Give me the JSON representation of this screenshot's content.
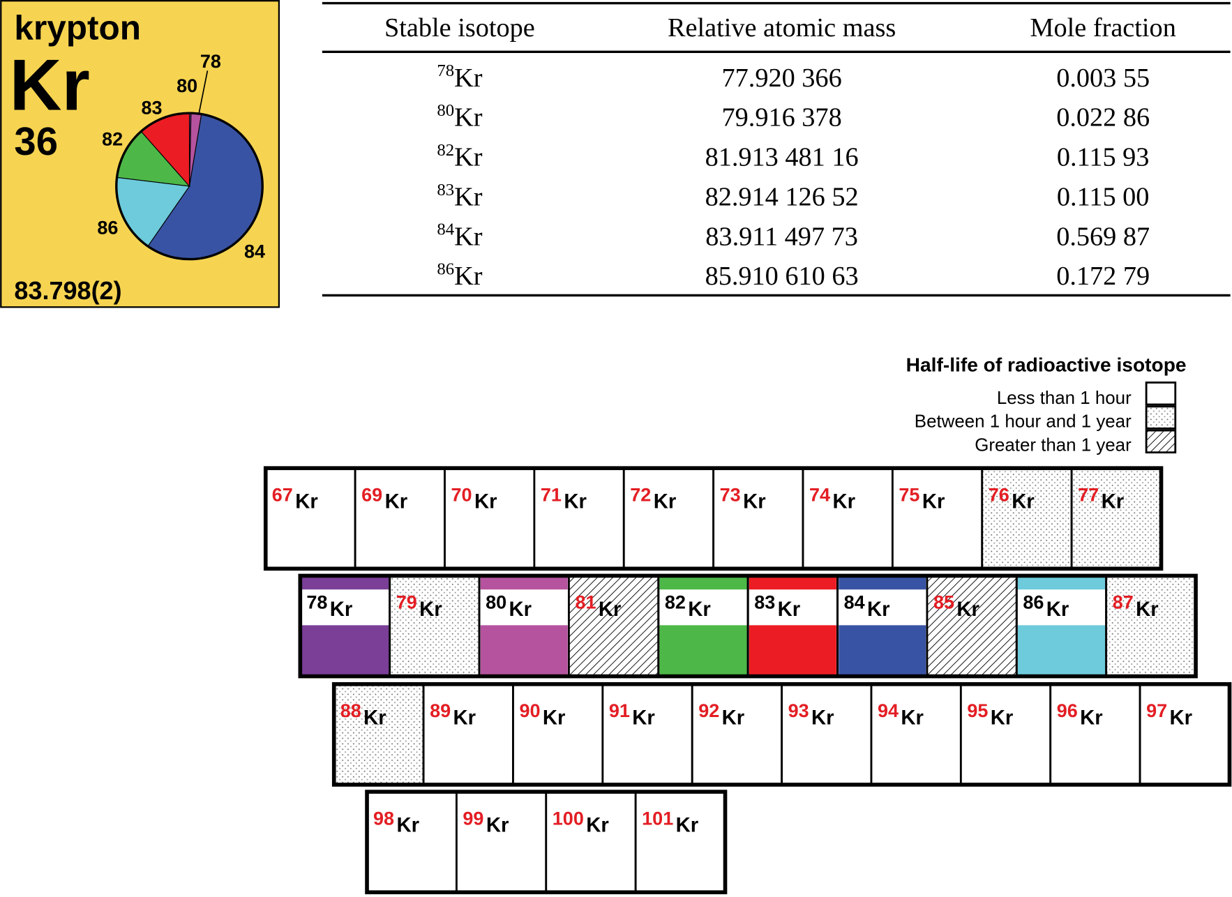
{
  "element_card": {
    "name": "krypton",
    "symbol": "Kr",
    "atomic_number": "36",
    "atomic_weight": "83.798(2)",
    "pie": {
      "labels": [
        "78",
        "80",
        "84",
        "86",
        "82",
        "83"
      ],
      "values": [
        0.00355,
        0.02286,
        0.56987,
        0.17279,
        0.11593,
        0.115
      ],
      "colors": [
        "#7b3f98",
        "#b5539e",
        "#3953a4",
        "#6dcbdb",
        "#4db848",
        "#ec1c24"
      ]
    }
  },
  "table": {
    "headers": [
      "Stable isotope",
      "Relative atomic mass",
      "Mole fraction"
    ],
    "rows": [
      {
        "mass_number": "78",
        "symbol": "Kr",
        "relative_atomic_mass": "77.920 366",
        "mole_fraction": "0.003 55"
      },
      {
        "mass_number": "80",
        "symbol": "Kr",
        "relative_atomic_mass": "79.916 378",
        "mole_fraction": "0.022 86"
      },
      {
        "mass_number": "82",
        "symbol": "Kr",
        "relative_atomic_mass": "81.913 481 16",
        "mole_fraction": "0.115 93"
      },
      {
        "mass_number": "83",
        "symbol": "Kr",
        "relative_atomic_mass": "82.914 126 52",
        "mole_fraction": "0.115 00"
      },
      {
        "mass_number": "84",
        "symbol": "Kr",
        "relative_atomic_mass": "83.911 497 73",
        "mole_fraction": "0.569 87"
      },
      {
        "mass_number": "86",
        "symbol": "Kr",
        "relative_atomic_mass": "85.910 610 63",
        "mole_fraction": "0.172 79"
      }
    ]
  },
  "legend": {
    "title": "Half-life of radioactive isotope",
    "items": [
      {
        "label": "Less than 1 hour",
        "half_life": "short"
      },
      {
        "label": "Between 1 hour and 1 year",
        "half_life": "medium"
      },
      {
        "label": "Greater than 1 year",
        "half_life": "long"
      }
    ]
  },
  "isotope_chart": {
    "rows": [
      [
        {
          "mass_number": "67",
          "symbol": "Kr",
          "half_life": "short"
        },
        {
          "mass_number": "69",
          "symbol": "Kr",
          "half_life": "short"
        },
        {
          "mass_number": "70",
          "symbol": "Kr",
          "half_life": "short"
        },
        {
          "mass_number": "71",
          "symbol": "Kr",
          "half_life": "short"
        },
        {
          "mass_number": "72",
          "symbol": "Kr",
          "half_life": "short"
        },
        {
          "mass_number": "73",
          "symbol": "Kr",
          "half_life": "short"
        },
        {
          "mass_number": "74",
          "symbol": "Kr",
          "half_life": "short"
        },
        {
          "mass_number": "75",
          "symbol": "Kr",
          "half_life": "short"
        },
        {
          "mass_number": "76",
          "symbol": "Kr",
          "half_life": "medium"
        },
        {
          "mass_number": "77",
          "symbol": "Kr",
          "half_life": "medium"
        }
      ],
      [
        {
          "mass_number": "78",
          "symbol": "Kr",
          "half_life": "stable",
          "color": "#7b3f98"
        },
        {
          "mass_number": "79",
          "symbol": "Kr",
          "half_life": "medium"
        },
        {
          "mass_number": "80",
          "symbol": "Kr",
          "half_life": "stable",
          "color": "#b5539e"
        },
        {
          "mass_number": "81",
          "symbol": "Kr",
          "half_life": "long"
        },
        {
          "mass_number": "82",
          "symbol": "Kr",
          "half_life": "stable",
          "color": "#4db848"
        },
        {
          "mass_number": "83",
          "symbol": "Kr",
          "half_life": "stable",
          "color": "#ec1c24"
        },
        {
          "mass_number": "84",
          "symbol": "Kr",
          "half_life": "stable",
          "color": "#3953a4"
        },
        {
          "mass_number": "85",
          "symbol": "Kr",
          "half_life": "long"
        },
        {
          "mass_number": "86",
          "symbol": "Kr",
          "half_life": "stable",
          "color": "#6dcbdb"
        },
        {
          "mass_number": "87",
          "symbol": "Kr",
          "half_life": "medium"
        }
      ],
      [
        {
          "mass_number": "88",
          "symbol": "Kr",
          "half_life": "medium"
        },
        {
          "mass_number": "89",
          "symbol": "Kr",
          "half_life": "short"
        },
        {
          "mass_number": "90",
          "symbol": "Kr",
          "half_life": "short"
        },
        {
          "mass_number": "91",
          "symbol": "Kr",
          "half_life": "short"
        },
        {
          "mass_number": "92",
          "symbol": "Kr",
          "half_life": "short"
        },
        {
          "mass_number": "93",
          "symbol": "Kr",
          "half_life": "short"
        },
        {
          "mass_number": "94",
          "symbol": "Kr",
          "half_life": "short"
        },
        {
          "mass_number": "95",
          "symbol": "Kr",
          "half_life": "short"
        },
        {
          "mass_number": "96",
          "symbol": "Kr",
          "half_life": "short"
        },
        {
          "mass_number": "97",
          "symbol": "Kr",
          "half_life": "short"
        }
      ],
      [
        {
          "mass_number": "98",
          "symbol": "Kr",
          "half_life": "short"
        },
        {
          "mass_number": "99",
          "symbol": "Kr",
          "half_life": "short"
        },
        {
          "mass_number": "100",
          "symbol": "Kr",
          "half_life": "short"
        },
        {
          "mass_number": "101",
          "symbol": "Kr",
          "half_life": "short"
        }
      ]
    ]
  }
}
